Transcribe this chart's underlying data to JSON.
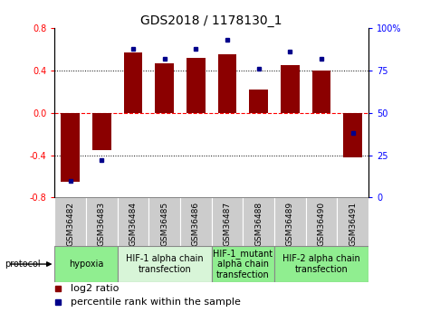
{
  "title": "GDS2018 / 1178130_1",
  "samples": [
    "GSM36482",
    "GSM36483",
    "GSM36484",
    "GSM36485",
    "GSM36486",
    "GSM36487",
    "GSM36488",
    "GSM36489",
    "GSM36490",
    "GSM36491"
  ],
  "log2_ratio": [
    -0.65,
    -0.35,
    0.57,
    0.47,
    0.52,
    0.55,
    0.22,
    0.45,
    0.4,
    -0.42
  ],
  "percentile_rank": [
    10,
    22,
    88,
    82,
    88,
    93,
    76,
    86,
    82,
    38
  ],
  "bar_color": "#8B0000",
  "dot_color": "#00008B",
  "ylim": [
    -0.8,
    0.8
  ],
  "y2lim": [
    0,
    100
  ],
  "yticks_left": [
    -0.8,
    -0.4,
    0.0,
    0.4,
    0.8
  ],
  "yticks_right": [
    0,
    25,
    50,
    75,
    100
  ],
  "ytick_labels_right": [
    "0",
    "25",
    "50",
    "75",
    "100%"
  ],
  "hgrid_values": [
    -0.4,
    0.0,
    0.4
  ],
  "protocol_groups": [
    {
      "label": "hypoxia",
      "start": 0,
      "end": 2,
      "color": "#90EE90"
    },
    {
      "label": "HIF-1 alpha chain\ntransfection",
      "start": 2,
      "end": 5,
      "color": "#d8f5d8"
    },
    {
      "label": "HIF-1_mutant\nalpha chain\ntransfection",
      "start": 5,
      "end": 7,
      "color": "#90EE90"
    },
    {
      "label": "HIF-2 alpha chain\ntransfection",
      "start": 7,
      "end": 10,
      "color": "#90EE90"
    }
  ],
  "protocol_label": "protocol",
  "legend_bar_label": "log2 ratio",
  "legend_dot_label": "percentile rank within the sample",
  "bar_width": 0.6,
  "title_fontsize": 10,
  "tick_fontsize": 7,
  "protocol_fontsize": 7,
  "legend_fontsize": 8,
  "sample_fontsize": 6.5
}
